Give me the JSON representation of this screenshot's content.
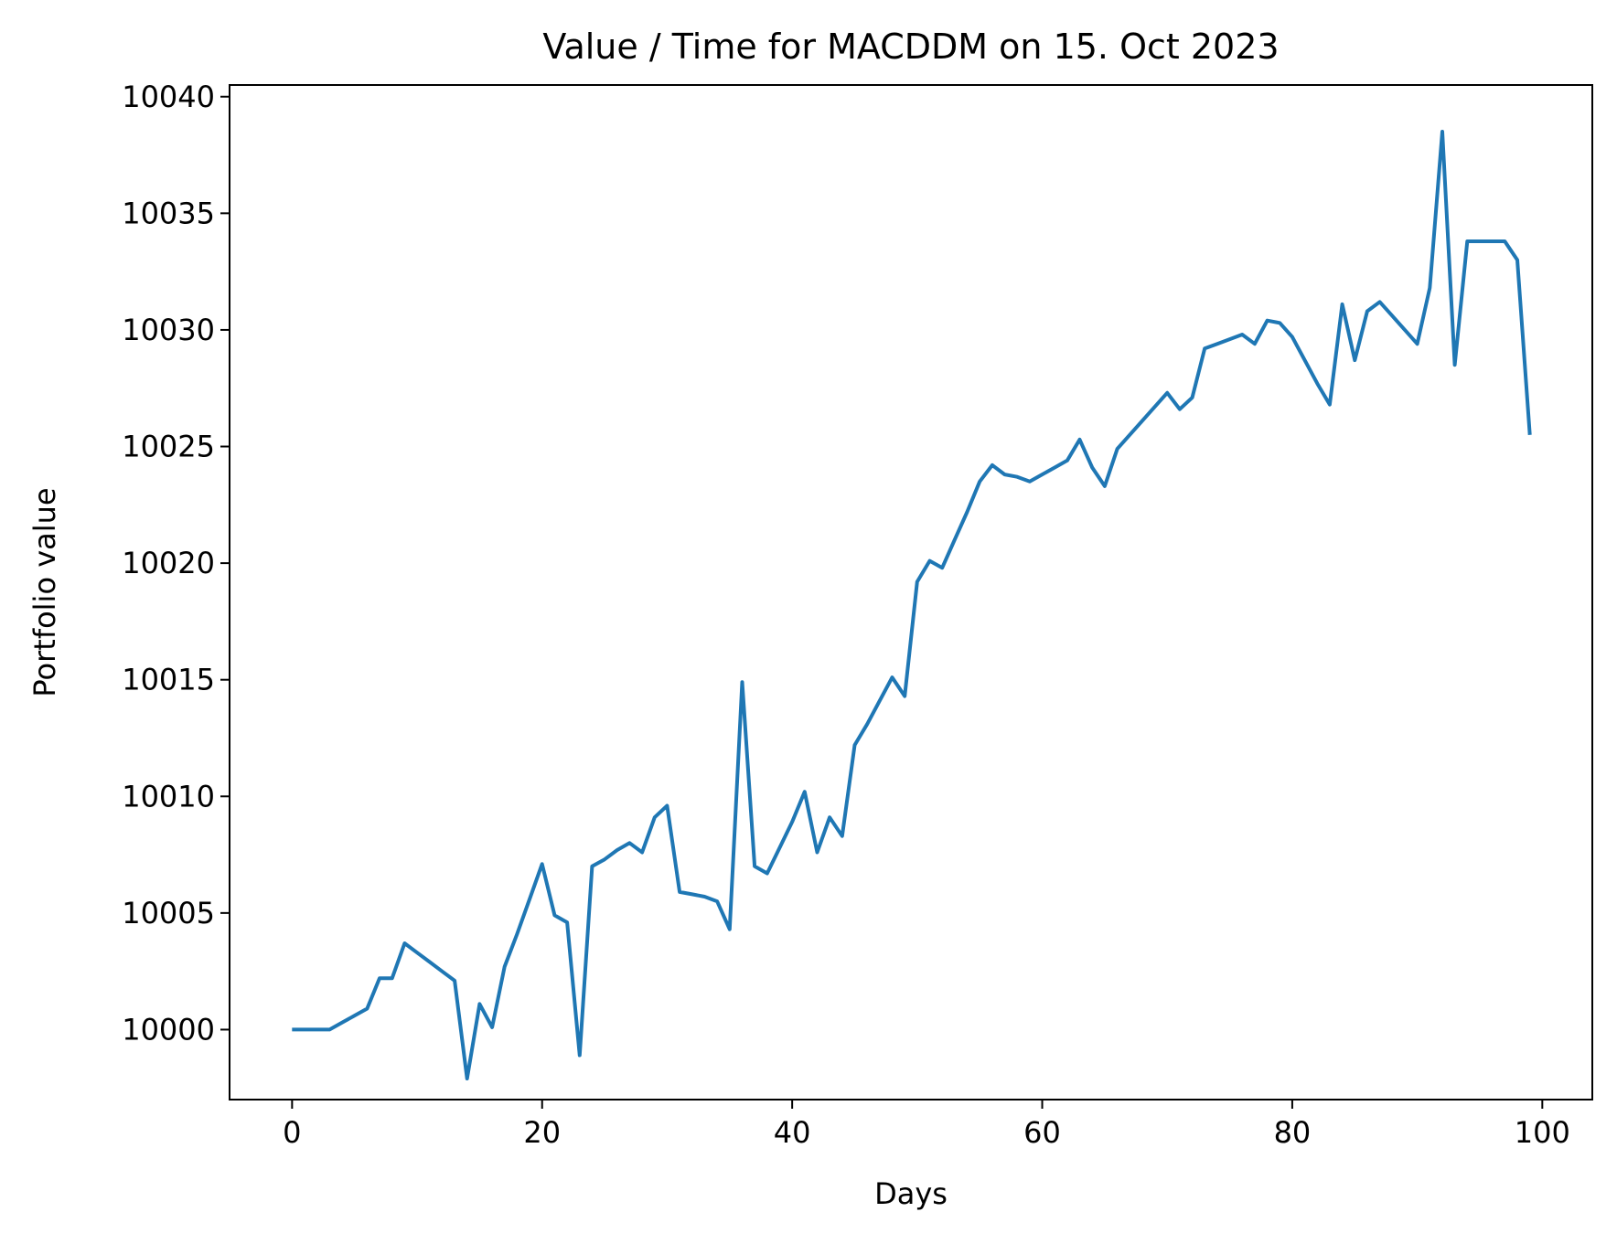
{
  "chart_data": {
    "type": "line",
    "title": "Value / Time for MACDDM on 15. Oct 2023",
    "xlabel": "Days",
    "ylabel": "Portfolio value",
    "xlim": [
      -5,
      104
    ],
    "ylim": [
      9997,
      10040.5
    ],
    "xticks": [
      0,
      20,
      40,
      60,
      80,
      100
    ],
    "xtick_labels": [
      "0",
      "20",
      "40",
      "60",
      "80",
      "100"
    ],
    "yticks": [
      10000,
      10005,
      10010,
      10015,
      10020,
      10025,
      10030,
      10035,
      10040
    ],
    "ytick_labels": [
      "10000",
      "10005",
      "10010",
      "10015",
      "10020",
      "10025",
      "10030",
      "10035",
      "10040"
    ],
    "grid": false,
    "legend": "none",
    "series": [
      {
        "color": "#1f77b4",
        "x": [
          0,
          1,
          2,
          3,
          4,
          5,
          6,
          7,
          8,
          9,
          10,
          11,
          12,
          13,
          14,
          15,
          16,
          17,
          18,
          19,
          20,
          21,
          22,
          23,
          24,
          25,
          26,
          27,
          28,
          29,
          30,
          31,
          32,
          33,
          34,
          35,
          36,
          37,
          38,
          39,
          40,
          41,
          42,
          43,
          44,
          45,
          46,
          47,
          48,
          49,
          50,
          51,
          52,
          53,
          54,
          55,
          56,
          57,
          58,
          59,
          60,
          61,
          62,
          63,
          64,
          65,
          66,
          67,
          68,
          69,
          70,
          71,
          72,
          73,
          74,
          75,
          76,
          77,
          78,
          79,
          80,
          81,
          82,
          83,
          84,
          85,
          86,
          87,
          88,
          89,
          90,
          91,
          92,
          93,
          94,
          95,
          96,
          97,
          98,
          99
        ],
        "y": [
          10000,
          10000,
          10000,
          10000,
          10000.3,
          10000.6,
          10000.9,
          10002.2,
          10002.2,
          10003.7,
          10003.3,
          10002.9,
          10002.5,
          10002.1,
          9997.9,
          10001.1,
          10000.1,
          10002.7,
          10004.1,
          10005.6,
          10007.1,
          10004.9,
          10004.6,
          9998.9,
          10007,
          10007.3,
          10007.7,
          10008,
          10007.6,
          10009.1,
          10009.6,
          10005.9,
          10005.8,
          10005.7,
          10005.5,
          10004.3,
          10014.9,
          10007,
          10006.7,
          10007.8,
          10008.9,
          10010.2,
          10007.6,
          10009.1,
          10008.3,
          10012.2,
          10013.1,
          10014.1,
          10015.1,
          10014.3,
          10019.2,
          10020.1,
          10019.8,
          10021,
          10022.2,
          10023.5,
          10024.2,
          10023.8,
          10023.7,
          10023.5,
          10023.8,
          10024.1,
          10024.4,
          10025.3,
          10024.1,
          10023.3,
          10024.9,
          10025.5,
          10026.1,
          10026.7,
          10027.3,
          10026.6,
          10027.1,
          10029.2,
          10029.4,
          10029.6,
          10029.8,
          10029.4,
          10030.4,
          10030.3,
          10029.7,
          10028.7,
          10027.7,
          10026.8,
          10031.1,
          10028.7,
          10030.8,
          10031.2,
          10030.6,
          10030,
          10029.4,
          10031.8,
          10038.5,
          10028.5,
          10033.8,
          10033.8,
          10033.8,
          10033.8,
          10033,
          10025.5
        ]
      }
    ]
  }
}
